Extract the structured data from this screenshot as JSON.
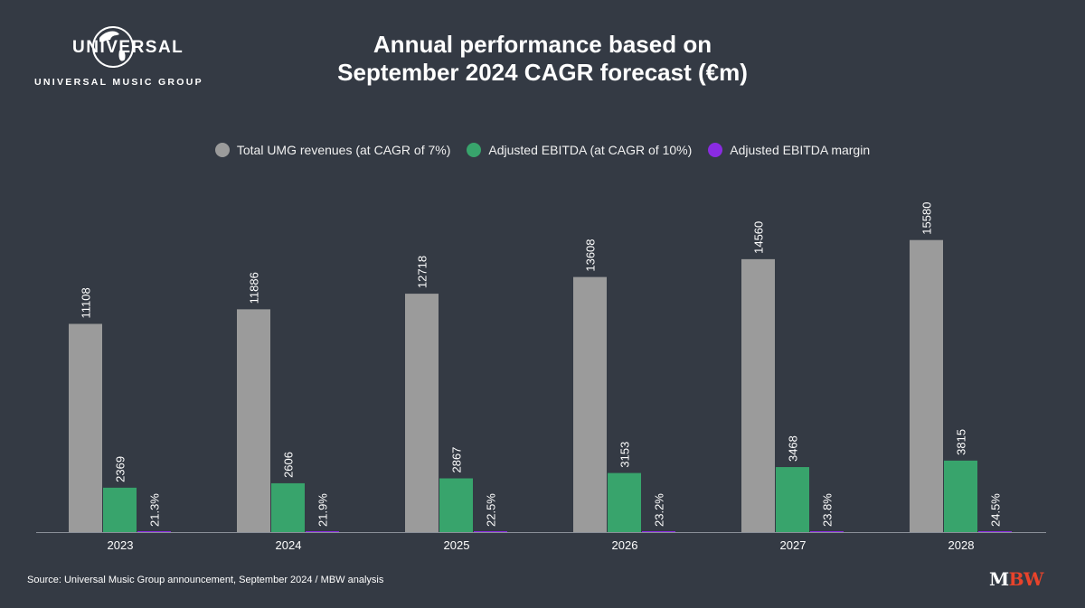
{
  "brand": {
    "logo_word": "UNIVERSAL",
    "logo_subtitle": "UNIVERSAL MUSIC GROUP"
  },
  "header": {
    "title_line1": "Annual performance based on",
    "title_line2": "September 2024 CAGR forecast (€m)"
  },
  "footer": {
    "source": "Source: Universal Music Group announcement, September 2024 / MBW analysis",
    "mbw_m": "M",
    "mbw_bw": "BW"
  },
  "colors": {
    "background": "#343a44",
    "revenue": "#9b9b9b",
    "ebitda": "#38a46c",
    "margin": "#8a2be2",
    "mbw_accent": "#e8432b"
  },
  "chart_data": {
    "type": "bar",
    "categories": [
      "2023",
      "2024",
      "2025",
      "2026",
      "2027",
      "2028"
    ],
    "series": [
      {
        "name": "Total UMG revenues (at CAGR of 7%)",
        "values": [
          11108,
          11886,
          12718,
          13608,
          14560,
          15580
        ],
        "labels": [
          "11108",
          "11886",
          "12718",
          "13608",
          "14560",
          "15580"
        ],
        "color": "#9b9b9b"
      },
      {
        "name": "Adjusted EBITDA (at CAGR of 10%)",
        "values": [
          2369,
          2606,
          2867,
          3153,
          3468,
          3815
        ],
        "labels": [
          "2369",
          "2606",
          "2867",
          "3153",
          "3468",
          "3815"
        ],
        "color": "#38a46c"
      },
      {
        "name": "Adjusted EBITDA margin",
        "values": [
          21.3,
          21.9,
          22.5,
          23.2,
          23.8,
          24.5
        ],
        "labels": [
          "21.3%",
          "21.9%",
          "22.5%",
          "23.2%",
          "23.8%",
          "24.5%"
        ],
        "color": "#8a2be2"
      }
    ],
    "ylim": [
      0,
      16000
    ],
    "grid": false,
    "legend_position": "top"
  }
}
